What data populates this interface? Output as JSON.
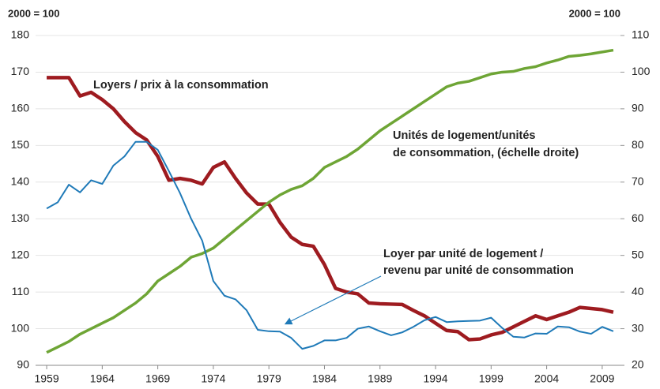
{
  "chart_data": {
    "type": "line",
    "y_label": "2000 = 100",
    "y2_label": "2000 = 100",
    "x": [
      1959,
      1960,
      1961,
      1962,
      1963,
      1964,
      1965,
      1966,
      1967,
      1968,
      1969,
      1970,
      1971,
      1972,
      1973,
      1974,
      1975,
      1976,
      1977,
      1978,
      1979,
      1980,
      1981,
      1982,
      1983,
      1984,
      1985,
      1986,
      1987,
      1988,
      1989,
      1990,
      1991,
      1992,
      1993,
      1994,
      1995,
      1996,
      1997,
      1998,
      1999,
      2000,
      2001,
      2002,
      2003,
      2004,
      2005,
      2006,
      2007,
      2008,
      2009,
      2010
    ],
    "xlim": [
      1958,
      2011
    ],
    "xticks": [
      1959,
      1964,
      1969,
      1974,
      1979,
      1984,
      1989,
      1994,
      1999,
      2004,
      2009
    ],
    "ylim": [
      90,
      180
    ],
    "yticks": [
      90,
      100,
      110,
      120,
      130,
      140,
      150,
      160,
      170,
      180
    ],
    "y2lim": [
      20,
      110
    ],
    "y2ticks": [
      20,
      30,
      40,
      50,
      60,
      70,
      80,
      90,
      100,
      110
    ],
    "grid": true,
    "series": [
      {
        "name": "Loyers / prix à la consommation",
        "color": "#9e1b20",
        "axis": "y",
        "values": [
          168.5,
          168.5,
          168.5,
          163.5,
          164.5,
          162.5,
          160,
          156.5,
          153.5,
          151.5,
          147,
          140.5,
          141,
          140.5,
          139.5,
          144,
          145.5,
          141,
          137,
          134,
          134,
          129,
          125,
          123,
          122.5,
          117.5,
          111,
          110,
          109.5,
          107,
          106.8,
          106.7,
          106.6,
          105,
          103.5,
          101.5,
          99.5,
          99.2,
          97,
          97.2,
          98.3,
          99,
          100.5,
          102,
          103.5,
          102.5,
          103.5,
          104.5,
          105.8,
          105.5,
          105.2,
          104.5
        ]
      },
      {
        "name": "Unités de logement/unités de consommation, (échelle droite)",
        "color": "#6ea535",
        "axis": "y2",
        "values": [
          23.5,
          25,
          26.5,
          28.5,
          30,
          31.5,
          33,
          35,
          37,
          39.5,
          43,
          45,
          47,
          49.5,
          50.5,
          52,
          54.5,
          57,
          59.5,
          62,
          64.5,
          66.5,
          68,
          69,
          71,
          74,
          75.5,
          77,
          79,
          81.5,
          84,
          86,
          88,
          90,
          92,
          94,
          96,
          97,
          97.5,
          98.5,
          99.5,
          100,
          100.2,
          101,
          101.5,
          102.5,
          103.3,
          104.3,
          104.6,
          105,
          105.5,
          106
        ]
      },
      {
        "name": "Loyer par unité de logement / revenu par unité de consommation",
        "color": "#1f7ab8",
        "axis": "y",
        "values": [
          132.8,
          134.5,
          139.3,
          137.2,
          140.5,
          139.5,
          144.5,
          147,
          151,
          151,
          148.8,
          143,
          137,
          130,
          124,
          113,
          109,
          108,
          105,
          99.7,
          99.3,
          99.2,
          97.5,
          94.5,
          95.3,
          96.8,
          96.8,
          97.5,
          100,
          100.6,
          99.3,
          98.2,
          99,
          100.5,
          102.3,
          103.2,
          101.8,
          102,
          102.1,
          102.2,
          103,
          100.2,
          97.8,
          97.6,
          98.7,
          98.6,
          100.6,
          100.4,
          99.2,
          98.6,
          100.5,
          99.3
        ]
      }
    ],
    "annotations": [
      [
        "Loyers / prix à la consommation"
      ],
      [
        "Unités de logement/unités",
        "de consommation, (échelle droite)"
      ],
      [
        "Loyer par unité de logement /",
        "revenu par unité de consommation"
      ]
    ]
  }
}
